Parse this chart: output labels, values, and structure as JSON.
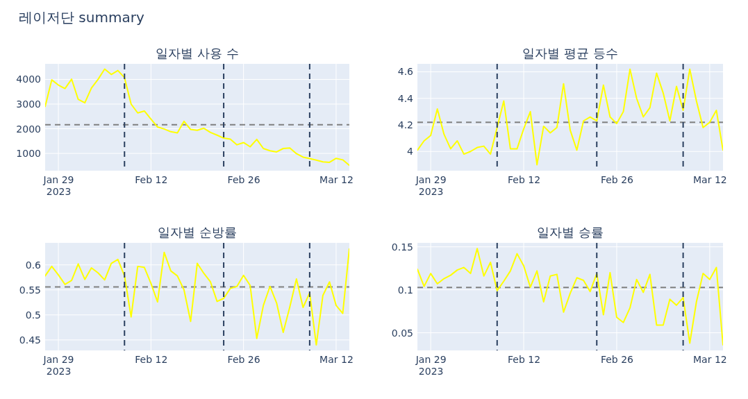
{
  "chart_data": [
    {
      "type": "line",
      "title": "일자별 사용 수",
      "annotations": [
        "레이저단 summary"
      ],
      "x": [
        "2023-01-27",
        "2023-01-28",
        "2023-01-29",
        "2023-01-30",
        "2023-01-31",
        "2023-02-01",
        "2023-02-02",
        "2023-02-03",
        "2023-02-04",
        "2023-02-05",
        "2023-02-06",
        "2023-02-07",
        "2023-02-08",
        "2023-02-09",
        "2023-02-10",
        "2023-02-11",
        "2023-02-12",
        "2023-02-13",
        "2023-02-14",
        "2023-02-15",
        "2023-02-16",
        "2023-02-17",
        "2023-02-18",
        "2023-02-19",
        "2023-02-20",
        "2023-02-21",
        "2023-02-22",
        "2023-02-23",
        "2023-02-24",
        "2023-02-25",
        "2023-02-26",
        "2023-02-27",
        "2023-02-28",
        "2023-03-01",
        "2023-03-02",
        "2023-03-03",
        "2023-03-04",
        "2023-03-05",
        "2023-03-06",
        "2023-03-07",
        "2023-03-08",
        "2023-03-09",
        "2023-03-10",
        "2023-03-11",
        "2023-03-12",
        "2023-03-13",
        "2023-03-14"
      ],
      "series": [
        {
          "color": "#ffff00",
          "values": [
            2900,
            3980,
            3770,
            3630,
            4010,
            3190,
            3050,
            3650,
            4000,
            4420,
            4200,
            4360,
            4070,
            3000,
            2640,
            2720,
            2390,
            2070,
            1990,
            1880,
            1830,
            2300,
            1970,
            1940,
            2020,
            1850,
            1740,
            1620,
            1580,
            1350,
            1440,
            1270,
            1570,
            1200,
            1110,
            1060,
            1200,
            1220,
            990,
            850,
            790,
            730,
            660,
            640,
            800,
            740,
            520
          ]
        }
      ],
      "xlim": [
        "2023-01-27",
        "2023-03-14"
      ],
      "xticks": [
        {
          "value": "2023-01-29",
          "label": "Jan 29\n2023"
        },
        {
          "value": "2023-02-12",
          "label": "Feb 12"
        },
        {
          "value": "2023-02-26",
          "label": "Feb 26"
        },
        {
          "value": "2023-03-12",
          "label": "Mar 12"
        }
      ],
      "ylim": [
        300,
        4630
      ],
      "yticks": [
        1000,
        2000,
        3000,
        4000
      ],
      "grid": true,
      "line_style": "solid",
      "ref_lines": [
        {
          "axis": "y",
          "value": 2160,
          "color": "#808080",
          "line_style": "dashed"
        },
        {
          "axis": "x",
          "value": "2023-02-08",
          "color": "#2a3f5f",
          "line_style": "dashed"
        },
        {
          "axis": "x",
          "value": "2023-02-23",
          "color": "#2a3f5f",
          "line_style": "dashed"
        },
        {
          "axis": "x",
          "value": "2023-03-08",
          "color": "#2a3f5f",
          "line_style": "dashed"
        }
      ]
    },
    {
      "type": "line",
      "title": "일자별 평균 등수",
      "x": [
        "2023-01-27",
        "2023-01-28",
        "2023-01-29",
        "2023-01-30",
        "2023-01-31",
        "2023-02-01",
        "2023-02-02",
        "2023-02-03",
        "2023-02-04",
        "2023-02-05",
        "2023-02-06",
        "2023-02-07",
        "2023-02-08",
        "2023-02-09",
        "2023-02-10",
        "2023-02-11",
        "2023-02-12",
        "2023-02-13",
        "2023-02-14",
        "2023-02-15",
        "2023-02-16",
        "2023-02-17",
        "2023-02-18",
        "2023-02-19",
        "2023-02-20",
        "2023-02-21",
        "2023-02-22",
        "2023-02-23",
        "2023-02-24",
        "2023-02-25",
        "2023-02-26",
        "2023-02-27",
        "2023-02-28",
        "2023-03-01",
        "2023-03-02",
        "2023-03-03",
        "2023-03-04",
        "2023-03-05",
        "2023-03-06",
        "2023-03-07",
        "2023-03-08",
        "2023-03-09",
        "2023-03-10",
        "2023-03-11",
        "2023-03-12",
        "2023-03-13",
        "2023-03-14"
      ],
      "series": [
        {
          "color": "#ffff00",
          "values": [
            4.01,
            4.08,
            4.12,
            4.32,
            4.13,
            4.02,
            4.08,
            3.98,
            4.0,
            4.03,
            4.04,
            3.98,
            4.18,
            4.38,
            4.02,
            4.02,
            4.17,
            4.3,
            3.9,
            4.19,
            4.14,
            4.18,
            4.51,
            4.16,
            4.01,
            4.23,
            4.26,
            4.23,
            4.5,
            4.26,
            4.21,
            4.3,
            4.62,
            4.4,
            4.26,
            4.33,
            4.59,
            4.44,
            4.23,
            4.49,
            4.31,
            4.62,
            4.38,
            4.18,
            4.22,
            4.31,
            4.01
          ]
        }
      ],
      "xlim": [
        "2023-01-27",
        "2023-03-14"
      ],
      "xticks": [
        {
          "value": "2023-01-29",
          "label": "Jan 29\n2023"
        },
        {
          "value": "2023-02-12",
          "label": "Feb 12"
        },
        {
          "value": "2023-02-26",
          "label": "Feb 26"
        },
        {
          "value": "2023-03-12",
          "label": "Mar 12"
        }
      ],
      "ylim": [
        3.855,
        4.66
      ],
      "yticks": [
        4,
        4.2,
        4.4,
        4.6
      ],
      "grid": true,
      "line_style": "solid",
      "ref_lines": [
        {
          "axis": "y",
          "value": 4.22,
          "color": "#808080",
          "line_style": "dashed"
        },
        {
          "axis": "x",
          "value": "2023-02-08",
          "color": "#2a3f5f",
          "line_style": "dashed"
        },
        {
          "axis": "x",
          "value": "2023-02-23",
          "color": "#2a3f5f",
          "line_style": "dashed"
        },
        {
          "axis": "x",
          "value": "2023-03-08",
          "color": "#2a3f5f",
          "line_style": "dashed"
        }
      ]
    },
    {
      "type": "line",
      "title": "일자별 순방률",
      "x": [
        "2023-01-27",
        "2023-01-28",
        "2023-01-29",
        "2023-01-30",
        "2023-01-31",
        "2023-02-01",
        "2023-02-02",
        "2023-02-03",
        "2023-02-04",
        "2023-02-05",
        "2023-02-06",
        "2023-02-07",
        "2023-02-08",
        "2023-02-09",
        "2023-02-10",
        "2023-02-11",
        "2023-02-12",
        "2023-02-13",
        "2023-02-14",
        "2023-02-15",
        "2023-02-16",
        "2023-02-17",
        "2023-02-18",
        "2023-02-19",
        "2023-02-20",
        "2023-02-21",
        "2023-02-22",
        "2023-02-23",
        "2023-02-24",
        "2023-02-25",
        "2023-02-26",
        "2023-02-27",
        "2023-02-28",
        "2023-03-01",
        "2023-03-02",
        "2023-03-03",
        "2023-03-04",
        "2023-03-05",
        "2023-03-06",
        "2023-03-07",
        "2023-03-08",
        "2023-03-09",
        "2023-03-10",
        "2023-03-11",
        "2023-03-12",
        "2023-03-13",
        "2023-03-14"
      ],
      "series": [
        {
          "color": "#ffff00",
          "values": [
            0.578,
            0.597,
            0.58,
            0.561,
            0.569,
            0.602,
            0.571,
            0.594,
            0.584,
            0.57,
            0.603,
            0.611,
            0.578,
            0.496,
            0.597,
            0.595,
            0.563,
            0.526,
            0.625,
            0.588,
            0.578,
            0.55,
            0.487,
            0.603,
            0.583,
            0.566,
            0.527,
            0.533,
            0.553,
            0.557,
            0.579,
            0.559,
            0.453,
            0.519,
            0.557,
            0.524,
            0.465,
            0.516,
            0.572,
            0.515,
            0.544,
            0.44,
            0.539,
            0.566,
            0.519,
            0.503,
            0.632
          ]
        }
      ],
      "xlim": [
        "2023-01-27",
        "2023-03-14"
      ],
      "xticks": [
        {
          "value": "2023-01-29",
          "label": "Jan 29\n2023"
        },
        {
          "value": "2023-02-12",
          "label": "Feb 12"
        },
        {
          "value": "2023-02-26",
          "label": "Feb 26"
        },
        {
          "value": "2023-03-12",
          "label": "Mar 12"
        }
      ],
      "ylim": [
        0.429,
        0.644
      ],
      "yticks": [
        0.45,
        0.5,
        0.55,
        0.6
      ],
      "grid": true,
      "line_style": "solid",
      "ref_lines": [
        {
          "axis": "y",
          "value": 0.556,
          "color": "#808080",
          "line_style": "dashed"
        },
        {
          "axis": "x",
          "value": "2023-02-08",
          "color": "#2a3f5f",
          "line_style": "dashed"
        },
        {
          "axis": "x",
          "value": "2023-02-23",
          "color": "#2a3f5f",
          "line_style": "dashed"
        },
        {
          "axis": "x",
          "value": "2023-03-08",
          "color": "#2a3f5f",
          "line_style": "dashed"
        }
      ]
    },
    {
      "type": "line",
      "title": "일자별 승률",
      "x": [
        "2023-01-27",
        "2023-01-28",
        "2023-01-29",
        "2023-01-30",
        "2023-01-31",
        "2023-02-01",
        "2023-02-02",
        "2023-02-03",
        "2023-02-04",
        "2023-02-05",
        "2023-02-06",
        "2023-02-07",
        "2023-02-08",
        "2023-02-09",
        "2023-02-10",
        "2023-02-11",
        "2023-02-12",
        "2023-02-13",
        "2023-02-14",
        "2023-02-15",
        "2023-02-16",
        "2023-02-17",
        "2023-02-18",
        "2023-02-19",
        "2023-02-20",
        "2023-02-21",
        "2023-02-22",
        "2023-02-23",
        "2023-02-24",
        "2023-02-25",
        "2023-02-26",
        "2023-02-27",
        "2023-02-28",
        "2023-03-01",
        "2023-03-02",
        "2023-03-03",
        "2023-03-04",
        "2023-03-05",
        "2023-03-06",
        "2023-03-07",
        "2023-03-08",
        "2023-03-09",
        "2023-03-10",
        "2023-03-11",
        "2023-03-12",
        "2023-03-13",
        "2023-03-14"
      ],
      "series": [
        {
          "color": "#ffff00",
          "values": [
            0.124,
            0.104,
            0.119,
            0.107,
            0.113,
            0.117,
            0.123,
            0.126,
            0.119,
            0.148,
            0.116,
            0.132,
            0.099,
            0.11,
            0.122,
            0.142,
            0.128,
            0.103,
            0.122,
            0.086,
            0.116,
            0.118,
            0.074,
            0.096,
            0.114,
            0.111,
            0.098,
            0.119,
            0.071,
            0.12,
            0.068,
            0.062,
            0.079,
            0.112,
            0.097,
            0.118,
            0.059,
            0.059,
            0.089,
            0.082,
            0.091,
            0.038,
            0.086,
            0.119,
            0.112,
            0.126,
            0.036
          ]
        }
      ],
      "xlim": [
        "2023-01-27",
        "2023-03-14"
      ],
      "xticks": [
        {
          "value": "2023-01-29",
          "label": "Jan 29\n2023"
        },
        {
          "value": "2023-02-12",
          "label": "Feb 12"
        },
        {
          "value": "2023-02-26",
          "label": "Feb 26"
        },
        {
          "value": "2023-03-12",
          "label": "Mar 12"
        }
      ],
      "ylim": [
        0.0295,
        0.1546
      ],
      "yticks": [
        0.05,
        0.1,
        0.15
      ],
      "grid": true,
      "line_style": "solid",
      "ref_lines": [
        {
          "axis": "y",
          "value": 0.1027,
          "color": "#808080",
          "line_style": "dashed"
        },
        {
          "axis": "x",
          "value": "2023-02-08",
          "color": "#2a3f5f",
          "line_style": "dashed"
        },
        {
          "axis": "x",
          "value": "2023-02-23",
          "color": "#2a3f5f",
          "line_style": "dashed"
        },
        {
          "axis": "x",
          "value": "2023-03-08",
          "color": "#2a3f5f",
          "line_style": "dashed"
        }
      ]
    }
  ]
}
